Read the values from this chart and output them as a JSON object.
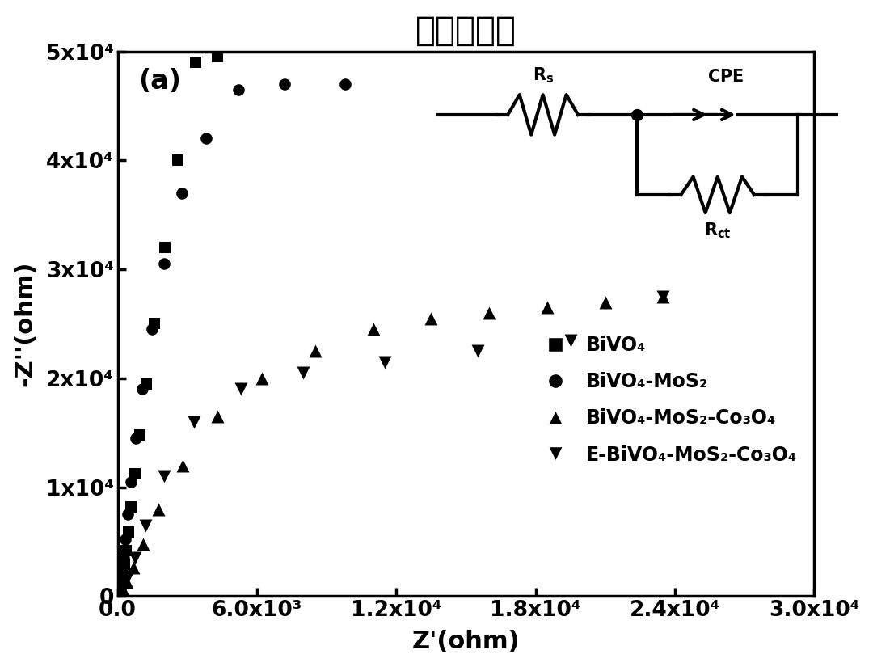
{
  "title": "黑暗条件下",
  "xlabel": "Z'(ohm)",
  "ylabel": "-Z''(ohm)",
  "panel_label": "(a)",
  "xlim": [
    0,
    30000
  ],
  "ylim": [
    0,
    50000
  ],
  "xticks": [
    0,
    6000,
    12000,
    18000,
    24000,
    30000
  ],
  "yticks": [
    0,
    10000,
    20000,
    30000,
    40000,
    50000
  ],
  "xtick_labels": [
    "0.0",
    "6.0x10³",
    "1.2x10⁴",
    "1.8x10⁴",
    "2.4x10⁴",
    "3.0x10⁴"
  ],
  "ytick_labels": [
    "0",
    "1x10⁴",
    "2x10⁴",
    "3x10⁴",
    "4x10⁴",
    "5x10⁴"
  ],
  "legend": [
    "BiVO₄",
    "BiVO₄-MoS₂",
    "BiVO₄-MoS₂-Co₃O₄",
    "E-BiVO₄-MoS₂-Co₃O₄"
  ],
  "series1_x": [
    30,
    50,
    70,
    100,
    130,
    170,
    215,
    275,
    350,
    450,
    580,
    740,
    950,
    1220,
    1570,
    2020,
    2600,
    3350,
    4300
  ],
  "series1_y": [
    60,
    130,
    280,
    550,
    900,
    1450,
    2050,
    2950,
    4200,
    5900,
    8200,
    11200,
    14800,
    19500,
    25000,
    32000,
    40000,
    49000,
    49500
  ],
  "series2_x": [
    30,
    50,
    70,
    100,
    135,
    180,
    240,
    320,
    430,
    580,
    790,
    1070,
    1460,
    2000,
    2750,
    3800,
    5200,
    7200,
    9800
  ],
  "series2_y": [
    60,
    180,
    430,
    850,
    1500,
    2300,
    3500,
    5200,
    7500,
    10500,
    14500,
    19000,
    24500,
    30500,
    37000,
    42000,
    46500,
    47000,
    47000
  ],
  "series3_x": [
    120,
    230,
    400,
    680,
    1100,
    1750,
    2800,
    4300,
    6200,
    8500,
    11000,
    13500,
    16000,
    18500,
    21000,
    23500
  ],
  "series3_y": [
    200,
    600,
    1300,
    2600,
    4800,
    8000,
    12000,
    16500,
    20000,
    22500,
    24500,
    25500,
    26000,
    26500,
    27000,
    27500
  ],
  "series4_x": [
    120,
    230,
    420,
    730,
    1200,
    2000,
    3300,
    5300,
    8000,
    11500,
    15500,
    19500,
    23500
  ],
  "series4_y": [
    200,
    700,
    1700,
    3500,
    6500,
    11000,
    16000,
    19000,
    20500,
    21500,
    22500,
    23500,
    27500
  ],
  "background_color": "#ffffff",
  "marker_color": "#000000",
  "fontsize_title": 30,
  "fontsize_labels": 22,
  "fontsize_ticks": 19,
  "fontsize_legend": 17,
  "fontsize_panel": 24
}
